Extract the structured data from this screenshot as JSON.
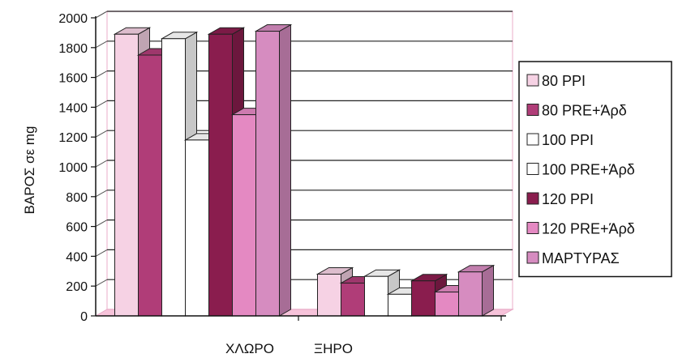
{
  "chart_data": {
    "type": "bar",
    "title": "",
    "xlabel": "",
    "ylabel": "ΒΑΡΟΣ σε mg",
    "ylim": [
      0,
      2000
    ],
    "ytick_step": 200,
    "grid": true,
    "legend_position": "right",
    "categories": [
      "ΧΛΩΡΟ",
      "ΞΗΡΟ"
    ],
    "series": [
      {
        "name": "80 PPI",
        "color": "#f6d2e4",
        "values": [
          1890,
          280
        ]
      },
      {
        "name": "80 PRE+Άρδ",
        "color": "#b03d78",
        "values": [
          1750,
          220
        ]
      },
      {
        "name": "100 PPI",
        "color": "#ffffff",
        "values": [
          1860,
          265
        ]
      },
      {
        "name": "100 PRE+Άρδ",
        "color": "#ffffff",
        "values": [
          1180,
          145
        ]
      },
      {
        "name": "120 PPI",
        "color": "#8a1d4e",
        "values": [
          1890,
          235
        ]
      },
      {
        "name": "120 PRE+Άρδ",
        "color": "#e489c2",
        "values": [
          1350,
          160
        ]
      },
      {
        "name": "ΜΑΡΤΥΡΑΣ",
        "color": "#d68cc0",
        "values": [
          1910,
          295
        ]
      }
    ]
  }
}
